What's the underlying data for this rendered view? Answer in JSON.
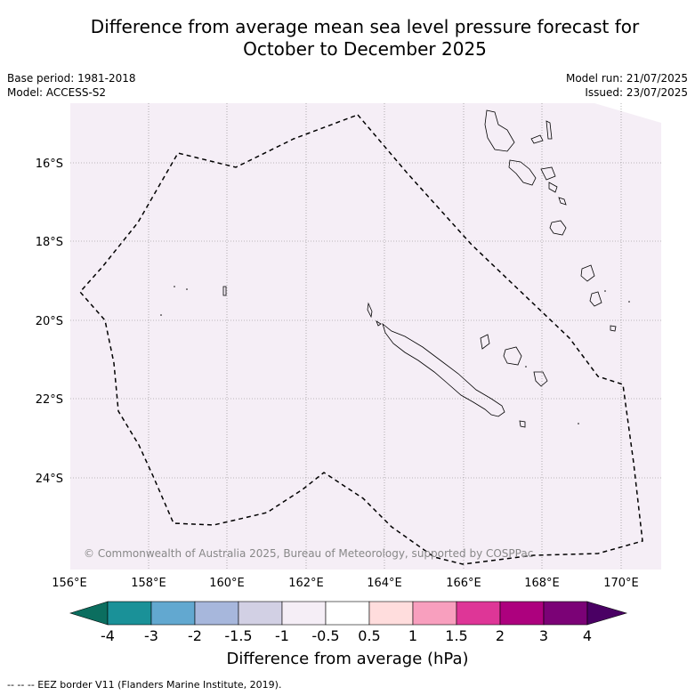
{
  "title_line1": "Difference from average mean sea level pressure forecast for",
  "title_line2": "October to December 2025",
  "base_period": "Base period: 1981-2018",
  "model": "Model: ACCESS-S2",
  "model_run": "Model run: 21/07/2025",
  "issued": "Issued: 23/07/2025",
  "copyright": "© Commonwealth of Australia 2025, Bureau of Meteorology, supported by COSPPac",
  "lon_ticks": [
    "156°E",
    "158°E",
    "160°E",
    "162°E",
    "164°E",
    "166°E",
    "168°E",
    "170°E"
  ],
  "lat_ticks": [
    "16°S",
    "18°S",
    "20°S",
    "22°S",
    "24°S"
  ],
  "colorbar": {
    "label": "Difference from average (hPa)",
    "tick_labels": [
      "-4",
      "-3",
      "-2",
      "-1.5",
      "-1",
      "-0.5",
      "0.5",
      "1",
      "1.5",
      "2",
      "3",
      "4"
    ],
    "colors": [
      "#1a9198",
      "#62a8d0",
      "#a7b7dc",
      "#d2d0e4",
      "#f5eef6",
      "#ffffff",
      "#ffdddd",
      "#f89fbe",
      "#de3697",
      "#ad017e",
      "#7b0276"
    ],
    "under_color": "#0b6e5f",
    "over_color": "#4a0064"
  },
  "field_color": "#f5eef6",
  "footer": "--  --  -- EEZ border V11 (Flanders Marine Institute, 2019)."
}
